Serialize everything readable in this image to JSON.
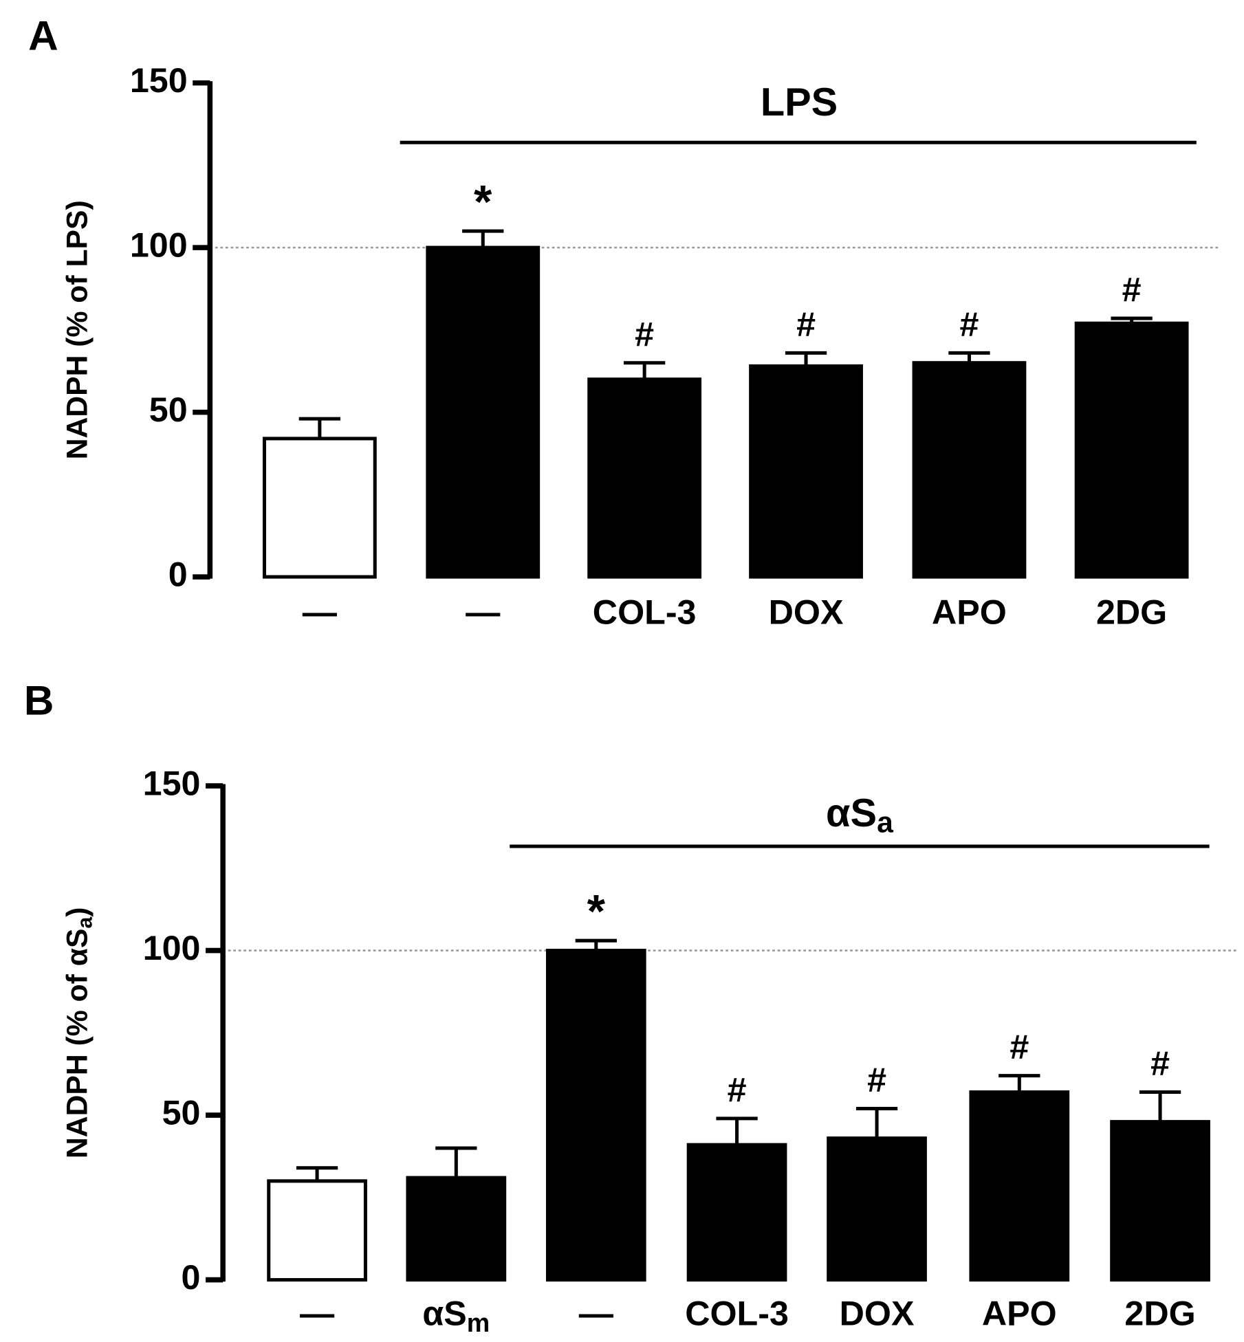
{
  "chart_data": [
    {
      "type": "bar",
      "panel": "A",
      "ylabel": "NADPH (% of LPS)",
      "group_label": "LPS",
      "categories": [
        "—",
        "—",
        "COL-3",
        "DOX",
        "APO",
        "2DG"
      ],
      "values": [
        42,
        100,
        60,
        64,
        65,
        77
      ],
      "errors": [
        6,
        5,
        5,
        4,
        3,
        1.5
      ],
      "colors": [
        "#ffffff",
        "#000000",
        "#000000",
        "#000000",
        "#000000",
        "#000000"
      ],
      "annotations": [
        null,
        "*",
        "#",
        "#",
        "#",
        "#"
      ],
      "reference_line": 100,
      "ylim": [
        0,
        150
      ],
      "yticks": [
        0,
        50,
        100,
        150
      ]
    },
    {
      "type": "bar",
      "panel": "B",
      "ylabel": "NADPH (% of αS",
      "ylabel_subscript": "a",
      "ylabel_end": ")",
      "group_label": "αS",
      "group_label_subscript": "a",
      "categories": [
        "—",
        "αS",
        "—",
        "COL-3",
        "DOX",
        "APO",
        "2DG"
      ],
      "category_subscripts": [
        null,
        "m",
        null,
        null,
        null,
        null,
        null
      ],
      "values": [
        30,
        31,
        100,
        41,
        43,
        57,
        48
      ],
      "errors": [
        4,
        9,
        3,
        8,
        9,
        5,
        9
      ],
      "colors": [
        "#ffffff",
        "#000000",
        "#000000",
        "#000000",
        "#000000",
        "#000000",
        "#000000"
      ],
      "annotations": [
        null,
        null,
        "*",
        "#",
        "#",
        "#",
        "#"
      ],
      "reference_line": 100,
      "ylim": [
        0,
        150
      ],
      "yticks": [
        0,
        50,
        100,
        150
      ]
    }
  ]
}
